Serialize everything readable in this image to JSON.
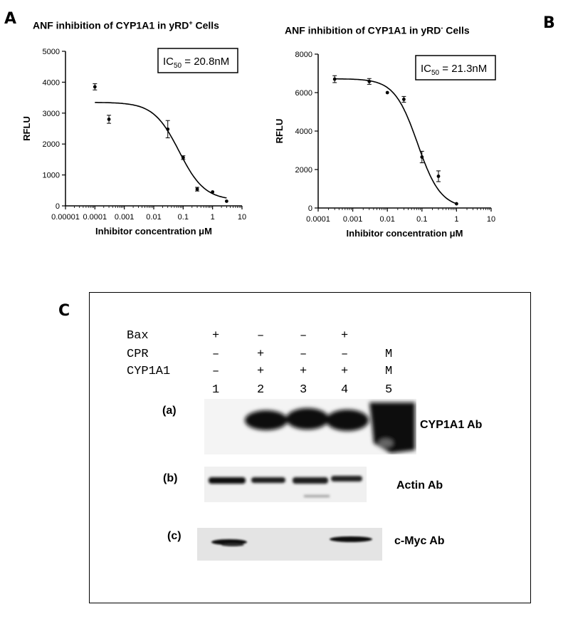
{
  "panels": {
    "a_letter": "A",
    "b_letter": "B",
    "c_letter": "C"
  },
  "chart_data": [
    {
      "type": "scatter",
      "title_main": "ANF inhibition of CYP1A1 in yRD",
      "title_sup": "+",
      "title_tail": " Cells",
      "xlabel": "Inhibitor concentration μM",
      "ylabel": "RFLU",
      "x_scale": "log",
      "x_ticks": [
        1e-05,
        0.0001,
        0.001,
        0.01,
        0.1,
        1,
        10
      ],
      "x_tick_labels": [
        "0.00001",
        "0.0001",
        "0.001",
        "0.01",
        "0.1",
        "1",
        "10"
      ],
      "ylim": [
        0,
        5000
      ],
      "y_ticks": [
        0,
        1000,
        2000,
        3000,
        4000,
        5000
      ],
      "ic50_prefix": "IC",
      "ic50_sub": "50",
      "ic50_value": " = 20.8nM",
      "ic50_legend": "top-right",
      "points": [
        {
          "x": 0.0001,
          "y": 3850,
          "err": 100
        },
        {
          "x": 0.0003,
          "y": 2800,
          "err": 130
        },
        {
          "x": 0.03,
          "y": 2480,
          "err": 280
        },
        {
          "x": 0.1,
          "y": 1560,
          "err": 60
        },
        {
          "x": 0.3,
          "y": 540,
          "err": 60
        },
        {
          "x": 1,
          "y": 450,
          "err": 0
        },
        {
          "x": 3,
          "y": 150,
          "err": 0
        }
      ],
      "fit": {
        "top": 3350,
        "bottom": 180,
        "ic50": 0.0208,
        "hill": 1.0
      }
    },
    {
      "type": "scatter",
      "title_main": "ANF inhibition of CYP1A1 in yRD",
      "title_sup": "-",
      "title_tail": " Cells",
      "xlabel": "Inhibitor concentration μM",
      "ylabel": "RFLU",
      "x_scale": "log",
      "x_ticks": [
        0.0001,
        0.001,
        0.01,
        0.1,
        1,
        10
      ],
      "x_tick_labels": [
        "0.0001",
        "0.001",
        "0.01",
        "0.1",
        "1",
        "10"
      ],
      "ylim": [
        0,
        8000
      ],
      "y_ticks": [
        0,
        2000,
        4000,
        6000,
        8000
      ],
      "ic50_prefix": "IC",
      "ic50_sub": "50",
      "ic50_value": " = 21.3nM",
      "ic50_legend": "top-right",
      "points": [
        {
          "x": 0.0003,
          "y": 6700,
          "err": 180
        },
        {
          "x": 0.003,
          "y": 6580,
          "err": 150
        },
        {
          "x": 0.01,
          "y": 6000,
          "err": 0
        },
        {
          "x": 0.03,
          "y": 5650,
          "err": 150
        },
        {
          "x": 0.1,
          "y": 2650,
          "err": 300
        },
        {
          "x": 0.3,
          "y": 1650,
          "err": 280
        },
        {
          "x": 1,
          "y": 220,
          "err": 0
        }
      ],
      "fit": {
        "top": 6720,
        "bottom": 0,
        "ic50": 0.0213,
        "hill": 1.3
      }
    }
  ],
  "blot": {
    "rows": [
      {
        "label": "Bax",
        "signs": [
          "+",
          "–",
          "–",
          "+",
          ""
        ]
      },
      {
        "label": "CPR",
        "signs": [
          "–",
          "+",
          "–",
          "–",
          "M"
        ]
      },
      {
        "label": "CYP1A1",
        "signs": [
          "–",
          "+",
          "+",
          "+",
          "M"
        ]
      }
    ],
    "lanes": [
      "1",
      "2",
      "3",
      "4",
      "5"
    ],
    "strips": [
      {
        "sub": "(a)",
        "antibody": "CYP1A1  Ab",
        "band_intensity": [
          0,
          1,
          1,
          1,
          1
        ]
      },
      {
        "sub": "(b)",
        "antibody": "Actin Ab",
        "band_intensity": [
          1,
          1,
          1,
          1
        ]
      },
      {
        "sub": "(c)",
        "antibody": "c-Myc  Ab",
        "band_intensity": [
          1,
          0,
          0,
          1
        ]
      }
    ]
  }
}
